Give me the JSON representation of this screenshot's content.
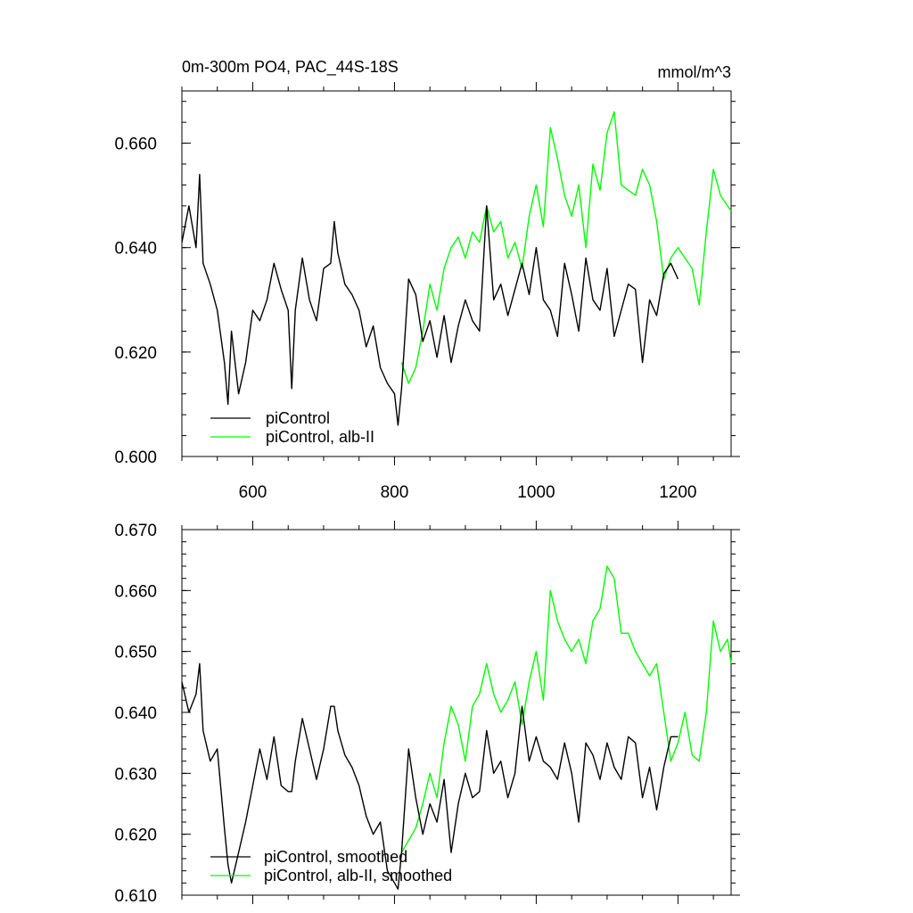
{
  "chart_data": [
    {
      "type": "line",
      "title": "0m-300m PO4, PAC_44S-18S",
      "units": "mmol/m^3",
      "xlim": [
        500,
        1275
      ],
      "ylim": [
        0.6,
        0.67
      ],
      "x_ticks": [
        600,
        800,
        1000,
        1200
      ],
      "x_tick_labels": [
        "600",
        "800",
        "1000",
        "1200"
      ],
      "y_ticks": [
        0.6,
        0.62,
        0.64,
        0.66
      ],
      "y_tick_labels": [
        "0.600",
        "0.620",
        "0.640",
        "0.660"
      ],
      "legend_position": "bottom-left",
      "series": [
        {
          "name": "piControl",
          "color": "#000000",
          "x": [
            500,
            510,
            520,
            525,
            530,
            540,
            550,
            560,
            565,
            570,
            580,
            590,
            600,
            610,
            620,
            630,
            640,
            650,
            655,
            660,
            670,
            680,
            690,
            700,
            710,
            715,
            720,
            730,
            740,
            750,
            760,
            770,
            780,
            790,
            800,
            805,
            810,
            820,
            830,
            840,
            850,
            860,
            870,
            880,
            890,
            900,
            910,
            920,
            930,
            940,
            950,
            960,
            970,
            980,
            990,
            1000,
            1010,
            1020,
            1030,
            1040,
            1050,
            1060,
            1070,
            1080,
            1090,
            1100,
            1110,
            1120,
            1130,
            1140,
            1150,
            1160,
            1170,
            1180,
            1190,
            1200
          ],
          "y": [
            0.641,
            0.648,
            0.64,
            0.654,
            0.637,
            0.633,
            0.628,
            0.618,
            0.61,
            0.624,
            0.612,
            0.618,
            0.628,
            0.626,
            0.63,
            0.637,
            0.632,
            0.628,
            0.613,
            0.628,
            0.638,
            0.63,
            0.626,
            0.636,
            0.637,
            0.645,
            0.639,
            0.633,
            0.631,
            0.628,
            0.621,
            0.625,
            0.617,
            0.614,
            0.612,
            0.606,
            0.613,
            0.634,
            0.631,
            0.622,
            0.626,
            0.619,
            0.627,
            0.618,
            0.625,
            0.63,
            0.626,
            0.624,
            0.648,
            0.63,
            0.633,
            0.627,
            0.632,
            0.637,
            0.631,
            0.64,
            0.63,
            0.628,
            0.623,
            0.637,
            0.631,
            0.624,
            0.638,
            0.63,
            0.628,
            0.636,
            0.623,
            0.628,
            0.633,
            0.632,
            0.618,
            0.63,
            0.627,
            0.635,
            0.637,
            0.634
          ]
        },
        {
          "name": "piControl, alb-II",
          "color": "#00ff00",
          "x": [
            810,
            820,
            830,
            840,
            850,
            860,
            870,
            880,
            890,
            900,
            910,
            920,
            930,
            940,
            950,
            960,
            970,
            980,
            990,
            1000,
            1010,
            1020,
            1030,
            1040,
            1050,
            1060,
            1070,
            1080,
            1090,
            1100,
            1110,
            1120,
            1130,
            1140,
            1150,
            1160,
            1170,
            1180,
            1190,
            1200,
            1210,
            1220,
            1230,
            1240,
            1250,
            1260,
            1270,
            1275
          ],
          "y": [
            0.618,
            0.614,
            0.617,
            0.624,
            0.633,
            0.628,
            0.636,
            0.64,
            0.642,
            0.638,
            0.643,
            0.641,
            0.648,
            0.643,
            0.645,
            0.638,
            0.641,
            0.636,
            0.646,
            0.652,
            0.644,
            0.663,
            0.657,
            0.65,
            0.646,
            0.652,
            0.64,
            0.656,
            0.651,
            0.662,
            0.666,
            0.652,
            0.651,
            0.65,
            0.655,
            0.652,
            0.645,
            0.634,
            0.638,
            0.64,
            0.638,
            0.636,
            0.629,
            0.643,
            0.655,
            0.65,
            0.648,
            0.647
          ]
        }
      ]
    },
    {
      "type": "line",
      "title": "",
      "xlim": [
        500,
        1275
      ],
      "ylim": [
        0.61,
        0.67
      ],
      "x_ticks": [
        600,
        800,
        1000,
        1200
      ],
      "y_ticks": [
        0.61,
        0.62,
        0.63,
        0.64,
        0.65,
        0.66,
        0.67
      ],
      "y_tick_labels": [
        "0.610",
        "0.620",
        "0.630",
        "0.640",
        "0.650",
        "0.660",
        "0.670"
      ],
      "legend_position": "bottom-left",
      "series": [
        {
          "name": "piControl, smoothed",
          "color": "#000000",
          "x": [
            500,
            510,
            520,
            525,
            530,
            540,
            550,
            560,
            565,
            570,
            580,
            590,
            600,
            610,
            620,
            630,
            640,
            650,
            655,
            660,
            670,
            680,
            690,
            700,
            710,
            715,
            720,
            730,
            740,
            750,
            760,
            770,
            780,
            790,
            800,
            805,
            810,
            820,
            830,
            840,
            850,
            860,
            870,
            880,
            890,
            900,
            910,
            920,
            930,
            940,
            950,
            960,
            970,
            980,
            990,
            1000,
            1010,
            1020,
            1030,
            1040,
            1050,
            1060,
            1070,
            1080,
            1090,
            1100,
            1110,
            1120,
            1130,
            1140,
            1150,
            1160,
            1170,
            1180,
            1190,
            1200
          ],
          "y": [
            0.645,
            0.64,
            0.643,
            0.648,
            0.637,
            0.632,
            0.634,
            0.621,
            0.615,
            0.612,
            0.617,
            0.622,
            0.628,
            0.634,
            0.629,
            0.636,
            0.628,
            0.627,
            0.627,
            0.632,
            0.639,
            0.634,
            0.629,
            0.634,
            0.641,
            0.641,
            0.637,
            0.633,
            0.631,
            0.628,
            0.623,
            0.62,
            0.622,
            0.614,
            0.612,
            0.611,
            0.617,
            0.634,
            0.626,
            0.62,
            0.625,
            0.622,
            0.629,
            0.617,
            0.625,
            0.63,
            0.626,
            0.627,
            0.637,
            0.63,
            0.632,
            0.626,
            0.63,
            0.641,
            0.632,
            0.636,
            0.632,
            0.631,
            0.629,
            0.635,
            0.63,
            0.622,
            0.635,
            0.633,
            0.629,
            0.635,
            0.631,
            0.629,
            0.636,
            0.635,
            0.626,
            0.631,
            0.624,
            0.631,
            0.636,
            0.636
          ]
        },
        {
          "name": "piControl, alb-II, smoothed",
          "color": "#00ff00",
          "x": [
            810,
            820,
            830,
            840,
            850,
            860,
            870,
            880,
            890,
            900,
            910,
            920,
            930,
            940,
            950,
            960,
            970,
            980,
            990,
            1000,
            1010,
            1020,
            1030,
            1040,
            1050,
            1060,
            1070,
            1080,
            1090,
            1100,
            1110,
            1120,
            1130,
            1140,
            1150,
            1160,
            1170,
            1180,
            1190,
            1200,
            1210,
            1220,
            1230,
            1240,
            1250,
            1260,
            1270,
            1275
          ],
          "y": [
            0.617,
            0.619,
            0.621,
            0.625,
            0.63,
            0.626,
            0.635,
            0.641,
            0.638,
            0.632,
            0.641,
            0.643,
            0.648,
            0.643,
            0.64,
            0.642,
            0.645,
            0.638,
            0.645,
            0.65,
            0.642,
            0.66,
            0.655,
            0.652,
            0.65,
            0.652,
            0.648,
            0.655,
            0.657,
            0.664,
            0.662,
            0.653,
            0.653,
            0.65,
            0.648,
            0.646,
            0.648,
            0.64,
            0.632,
            0.635,
            0.64,
            0.633,
            0.632,
            0.64,
            0.655,
            0.65,
            0.652,
            0.648
          ]
        }
      ]
    }
  ]
}
